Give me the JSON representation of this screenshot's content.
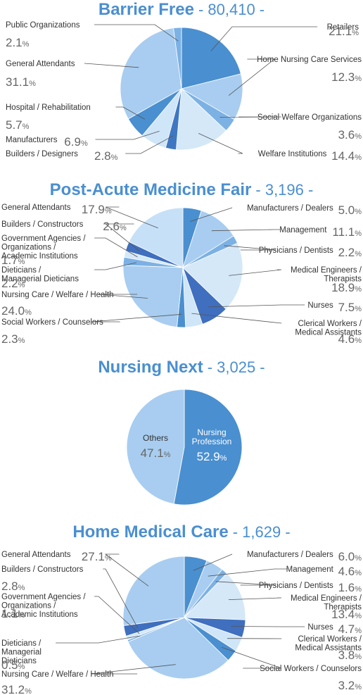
{
  "charts": [
    {
      "type": "pie",
      "title": "Barrier Free",
      "total": "- 80,410 -",
      "slices": [
        {
          "label": [
            "Retailers"
          ],
          "value": 21.1,
          "color": "#4a8fd0"
        },
        {
          "label": [
            "Home Nursing Care Services"
          ],
          "value": 12.3,
          "color": "#a8cdf0"
        },
        {
          "label": [
            "Social Welfare Organizations"
          ],
          "value": 3.6,
          "color": "#7cb1e4"
        },
        {
          "label": [
            "Welfare Institutions"
          ],
          "value": 14.4,
          "color": "#d4e8f8"
        },
        {
          "label": [
            "Builders / Designers"
          ],
          "value": 2.8,
          "color": "#3f77c2"
        },
        {
          "label": [
            "Manufacturers"
          ],
          "value": 6.9,
          "color": "#cfe5f8"
        },
        {
          "label": [
            "Hospital / Rehabilitation"
          ],
          "value": 5.7,
          "color": "#4a8fd0"
        },
        {
          "label": [
            "General Attendants"
          ],
          "value": 31.1,
          "color": "#a8cdf0"
        },
        {
          "label": [
            "Public Organizations"
          ],
          "value": 2.1,
          "color": "#7cb1e4"
        }
      ]
    },
    {
      "type": "pie",
      "title": "Post-Acute Medicine Fair",
      "total": "- 3,196 -",
      "slices": [
        {
          "label": [
            "Manufacturers / Dealers"
          ],
          "value": 5.0,
          "color": "#4a8fd0"
        },
        {
          "label": [
            "Management"
          ],
          "value": 11.1,
          "color": "#a8cdf0"
        },
        {
          "label": [
            "Physicians / Dentists"
          ],
          "value": 2.2,
          "color": "#7cb1e4"
        },
        {
          "label": [
            "Medical Engineers /",
            "Therapists"
          ],
          "value": 18.9,
          "color": "#d4e8f8"
        },
        {
          "label": [
            "Nurses"
          ],
          "value": 7.5,
          "color": "#3f6fbe"
        },
        {
          "label": [
            "Clerical Workers /",
            "Medical Assistants"
          ],
          "value": 4.6,
          "color": "#cfe5f8"
        },
        {
          "label": [
            "Social Workers / Counselors"
          ],
          "value": 2.3,
          "color": "#4a8fd0"
        },
        {
          "label": [
            "Nursing Care / Welfare / Health"
          ],
          "value": 24.0,
          "color": "#a8cdf0"
        },
        {
          "label": [
            "Dieticians /",
            "Managerial Dieticians"
          ],
          "value": 2.2,
          "color": "#7cb1e4"
        },
        {
          "label": [
            "Government Agencies /",
            "Organizations /",
            "Academic Institutions"
          ],
          "value": 1.7,
          "color": "#d4e8f8"
        },
        {
          "label": [
            "Builders / Constructors"
          ],
          "value": 2.6,
          "color": "#3f6fbe"
        },
        {
          "label": [
            "General Attendants"
          ],
          "value": 17.9,
          "color": "#c6e0f7"
        }
      ]
    },
    {
      "type": "pie",
      "title": "Nursing Next",
      "total": "- 3,025 -",
      "slices": [
        {
          "label": [
            "Nursing",
            "Profession"
          ],
          "value": 52.9,
          "color": "#4a8fd0"
        },
        {
          "label": [
            "Others"
          ],
          "value": 47.1,
          "color": "#a8cdf0"
        }
      ]
    },
    {
      "type": "pie",
      "title": "Home Medical Care",
      "total": "- 1,629 -",
      "slices": [
        {
          "label": [
            "Manufacturers / Dealers"
          ],
          "value": 6.0,
          "color": "#4a8fd0"
        },
        {
          "label": [
            "Management"
          ],
          "value": 4.6,
          "color": "#a8cdf0"
        },
        {
          "label": [
            "Physicians / Dentists"
          ],
          "value": 1.6,
          "color": "#7cb1e4"
        },
        {
          "label": [
            "Medical Engineers /",
            "Therapists"
          ],
          "value": 13.4,
          "color": "#d4e8f8"
        },
        {
          "label": [
            "Nurses"
          ],
          "value": 4.7,
          "color": "#3f6fbe"
        },
        {
          "label": [
            "Clerical Workers /",
            "Medical Assistants"
          ],
          "value": 3.8,
          "color": "#cfe5f8"
        },
        {
          "label": [
            "Social Workers / Counselors"
          ],
          "value": 3.2,
          "color": "#4a8fd0"
        },
        {
          "label": [
            "Nursing Care / Welfare / Health"
          ],
          "value": 31.2,
          "color": "#a8cdf0"
        },
        {
          "label": [
            "Dieticians /",
            "Managerial",
            "Dieticians"
          ],
          "value": 0.5,
          "color": "#7cb1e4"
        },
        {
          "label": [
            "Government Agencies /",
            "Organizations /",
            "Academic Institutions"
          ],
          "value": 1.1,
          "color": "#d4e8f8"
        },
        {
          "label": [
            "Builders / Constructors"
          ],
          "value": 2.8,
          "color": "#3f6fbe"
        },
        {
          "label": [
            "General Attendants"
          ],
          "value": 27.1,
          "color": "#a8cdf0"
        }
      ]
    }
  ],
  "percent_unit": "%",
  "colors": {
    "title": "#4a8fd0",
    "label": "#333333",
    "value": "#666666",
    "leader": "#555555",
    "slice_border": "#ffffff"
  }
}
